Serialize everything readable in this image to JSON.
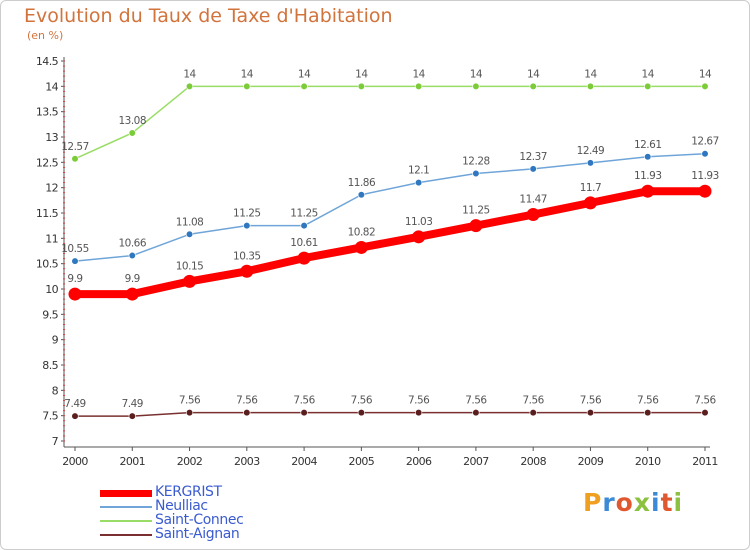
{
  "title": "Evolution du Taux de Taxe d'Habitation",
  "subtitle": "(en %)",
  "logo": {
    "text": "Proxiti",
    "letters": [
      {
        "ch": "P",
        "color": "#f0a020"
      },
      {
        "ch": "r",
        "color": "#3a8ad8"
      },
      {
        "ch": "o",
        "color": "#e05830"
      },
      {
        "ch": "x",
        "color": "#8cc040"
      },
      {
        "ch": "i",
        "color": "#3a8ad8"
      },
      {
        "ch": "t",
        "color": "#e05830"
      },
      {
        "ch": "i",
        "color": "#8cc040"
      }
    ]
  },
  "chart_data": {
    "type": "line",
    "title": "Evolution du Taux de Taxe d'Habitation",
    "subtitle": "(en %)",
    "xlabel": "",
    "ylabel": "",
    "x": [
      "2000",
      "2001",
      "2002",
      "2003",
      "2004",
      "2005",
      "2006",
      "2007",
      "2008",
      "2009",
      "2010",
      "2011"
    ],
    "ylim": [
      7,
      14.5
    ],
    "yticks": [
      "7",
      "7.5",
      "8",
      "8.5",
      "9",
      "9.5",
      "10",
      "10.5",
      "11",
      "11.5",
      "12",
      "12.5",
      "13",
      "13.5",
      "14",
      "14.5"
    ],
    "grid": false,
    "legend_position": "bottom-left",
    "series": [
      {
        "name": "KERGRIST",
        "color": "#ff0000",
        "emphasis": "bold",
        "values": [
          9.9,
          9.9,
          10.15,
          10.35,
          10.61,
          10.82,
          11.03,
          11.25,
          11.47,
          11.7,
          11.93,
          11.93
        ],
        "labels": [
          "9.9",
          "9.9",
          "10.15",
          "10.35",
          "10.61",
          "10.82",
          "11.03",
          "11.25",
          "11.47",
          "11.7",
          "11.93",
          "11.93"
        ]
      },
      {
        "name": "Neulliac",
        "color": "#6fa5d8",
        "marker_color": "#2f78c0",
        "values": [
          10.55,
          10.66,
          11.08,
          11.25,
          11.25,
          11.86,
          12.1,
          12.28,
          12.37,
          12.49,
          12.61,
          12.67
        ],
        "labels": [
          "10.55",
          "10.66",
          "11.08",
          "11.25",
          "11.25",
          "11.86",
          "12.1",
          "12.28",
          "12.37",
          "12.49",
          "12.61",
          "12.67"
        ]
      },
      {
        "name": "Saint-Connec",
        "color": "#99dd66",
        "marker_color": "#7ccc3a",
        "values": [
          12.57,
          13.08,
          14,
          14,
          14,
          14,
          14,
          14,
          14,
          14,
          14,
          14
        ],
        "labels": [
          "12.57",
          "13.08",
          "14",
          "14",
          "14",
          "14",
          "14",
          "14",
          "14",
          "14",
          "14",
          "14"
        ]
      },
      {
        "name": "Saint-Aignan",
        "color": "#7a3030",
        "marker_color": "#5a1e1e",
        "values": [
          7.49,
          7.49,
          7.56,
          7.56,
          7.56,
          7.56,
          7.56,
          7.56,
          7.56,
          7.56,
          7.56,
          7.56
        ],
        "labels": [
          "7.49",
          "7.49",
          "7.56",
          "7.56",
          "7.56",
          "7.56",
          "7.56",
          "7.56",
          "7.56",
          "7.56",
          "7.56",
          "7.56"
        ]
      }
    ]
  }
}
